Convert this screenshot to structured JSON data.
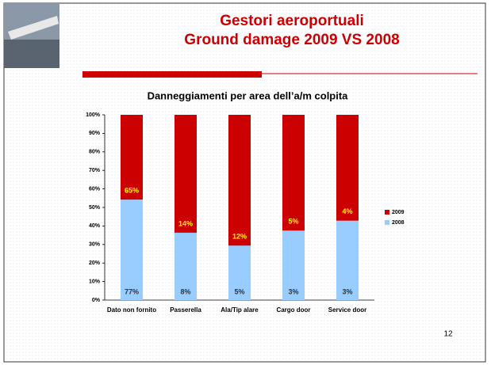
{
  "header": {
    "title": "Gestori aeroportuali",
    "subtitle": "Ground damage 2009 VS 2008"
  },
  "page_number": "12",
  "chart_data": {
    "type": "bar",
    "stacking": "percent",
    "title": "Danneggiamenti per area dell’a/m colpita",
    "categories": [
      "Dato non fornito",
      "Passerella",
      "Ala/Tip alare",
      "Cargo door",
      "Service door"
    ],
    "series": [
      {
        "name": "2008",
        "color": "#99ccff",
        "values": [
          77,
          8,
          5,
          3,
          3
        ],
        "value_labels": [
          "77%",
          "8%",
          "5%",
          "3%",
          "3%"
        ]
      },
      {
        "name": "2009",
        "color": "#cc0000",
        "values": [
          65,
          14,
          12,
          5,
          4
        ],
        "value_labels": [
          "65%",
          "14%",
          "12%",
          "5%",
          "4%"
        ]
      }
    ],
    "ylim": [
      0,
      100
    ],
    "yticks": [
      {
        "value": 0,
        "label": "0%"
      },
      {
        "value": 10,
        "label": "10%"
      },
      {
        "value": 20,
        "label": "20%"
      },
      {
        "value": 30,
        "label": "30%"
      },
      {
        "value": 40,
        "label": "40%"
      },
      {
        "value": 50,
        "label": "50%"
      },
      {
        "value": 60,
        "label": "60%"
      },
      {
        "value": 70,
        "label": "70%"
      },
      {
        "value": 80,
        "label": "80%"
      },
      {
        "value": 90,
        "label": "90%"
      },
      {
        "value": 100,
        "label": "100%"
      }
    ],
    "legend": "right"
  }
}
